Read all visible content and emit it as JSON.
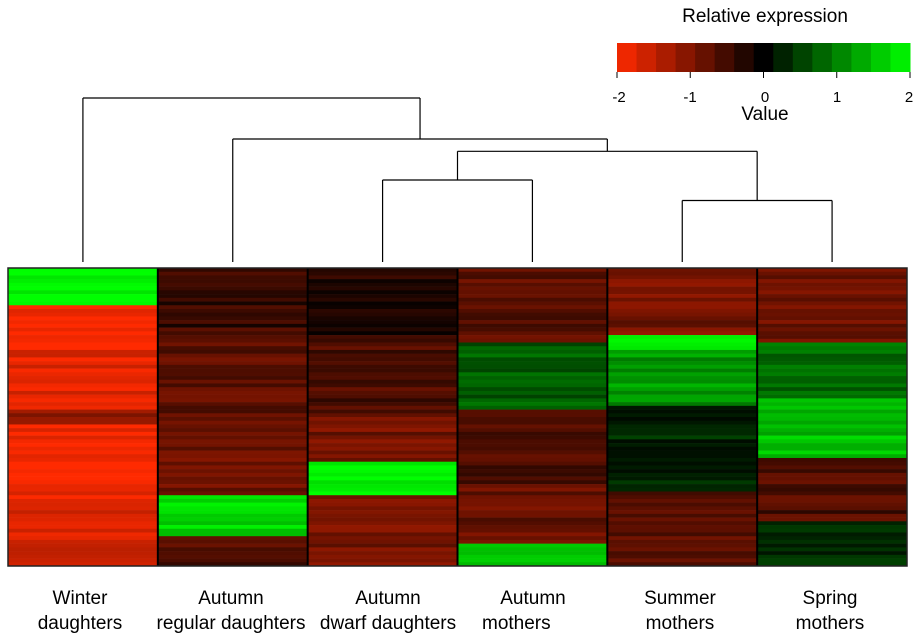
{
  "chart_data": {
    "type": "heatmap",
    "legend": {
      "title": "Relative expression",
      "value_label": "Value",
      "ticks": [
        "-2",
        "-1",
        "0",
        "1",
        "2"
      ],
      "range": [
        -2,
        2
      ],
      "color_low": "#ff2a00",
      "color_mid": "#000000",
      "color_high": "#00ff00",
      "steps": 15
    },
    "samples": [
      {
        "line1": "Winter",
        "line2": "daughters"
      },
      {
        "line1": "Autumn",
        "line2": "regular daughters"
      },
      {
        "line1": "Autumn",
        "line2": "dwarf daughters"
      },
      {
        "line1": "Autumn",
        "line2": "mothers"
      },
      {
        "line1": "Summer",
        "line2": "mothers"
      },
      {
        "line1": "Spring",
        "line2": "mothers"
      }
    ],
    "dendrogram": [
      {
        "left": 0,
        "right": "n1",
        "height": 4
      },
      {
        "id": "n1",
        "left": 1,
        "right": "n2",
        "height": 3
      },
      {
        "id": "n2",
        "left": "n3",
        "right": "n4",
        "height": 2.7
      },
      {
        "id": "n3",
        "left": 2,
        "right": 3,
        "height": 2
      },
      {
        "id": "n4",
        "left": 4,
        "right": 5,
        "height": 1.5
      }
    ],
    "column_blocks": [
      [
        [
          0.0,
          0.13,
          2.0
        ],
        [
          0.13,
          0.26,
          -1.9
        ],
        [
          0.26,
          0.48,
          -1.8
        ],
        [
          0.48,
          0.53,
          -1.1
        ],
        [
          0.53,
          0.78,
          -1.9
        ],
        [
          0.78,
          1.0,
          -1.7
        ]
      ],
      [
        [
          0.0,
          0.2,
          -0.4
        ],
        [
          0.2,
          0.58,
          -0.7
        ],
        [
          0.58,
          0.76,
          -0.8
        ],
        [
          0.76,
          0.9,
          1.7
        ],
        [
          0.9,
          1.0,
          -0.6
        ]
      ],
      [
        [
          0.0,
          0.22,
          -0.3
        ],
        [
          0.22,
          0.5,
          -0.6
        ],
        [
          0.5,
          0.65,
          -0.9
        ],
        [
          0.65,
          0.76,
          1.9
        ],
        [
          0.76,
          1.0,
          -0.9
        ]
      ],
      [
        [
          0.0,
          0.25,
          -0.7
        ],
        [
          0.25,
          0.48,
          0.7
        ],
        [
          0.48,
          0.72,
          -0.6
        ],
        [
          0.72,
          0.92,
          -0.8
        ],
        [
          0.92,
          1.0,
          1.6
        ]
      ],
      [
        [
          0.0,
          0.22,
          -0.9
        ],
        [
          0.22,
          0.27,
          1.7
        ],
        [
          0.27,
          0.46,
          1.2
        ],
        [
          0.46,
          0.75,
          0.3
        ],
        [
          0.75,
          1.0,
          -0.7
        ]
      ],
      [
        [
          0.0,
          0.25,
          -0.8
        ],
        [
          0.25,
          0.44,
          0.8
        ],
        [
          0.44,
          0.64,
          1.5
        ],
        [
          0.64,
          0.85,
          -0.6
        ],
        [
          0.85,
          1.0,
          0.4
        ]
      ]
    ]
  }
}
